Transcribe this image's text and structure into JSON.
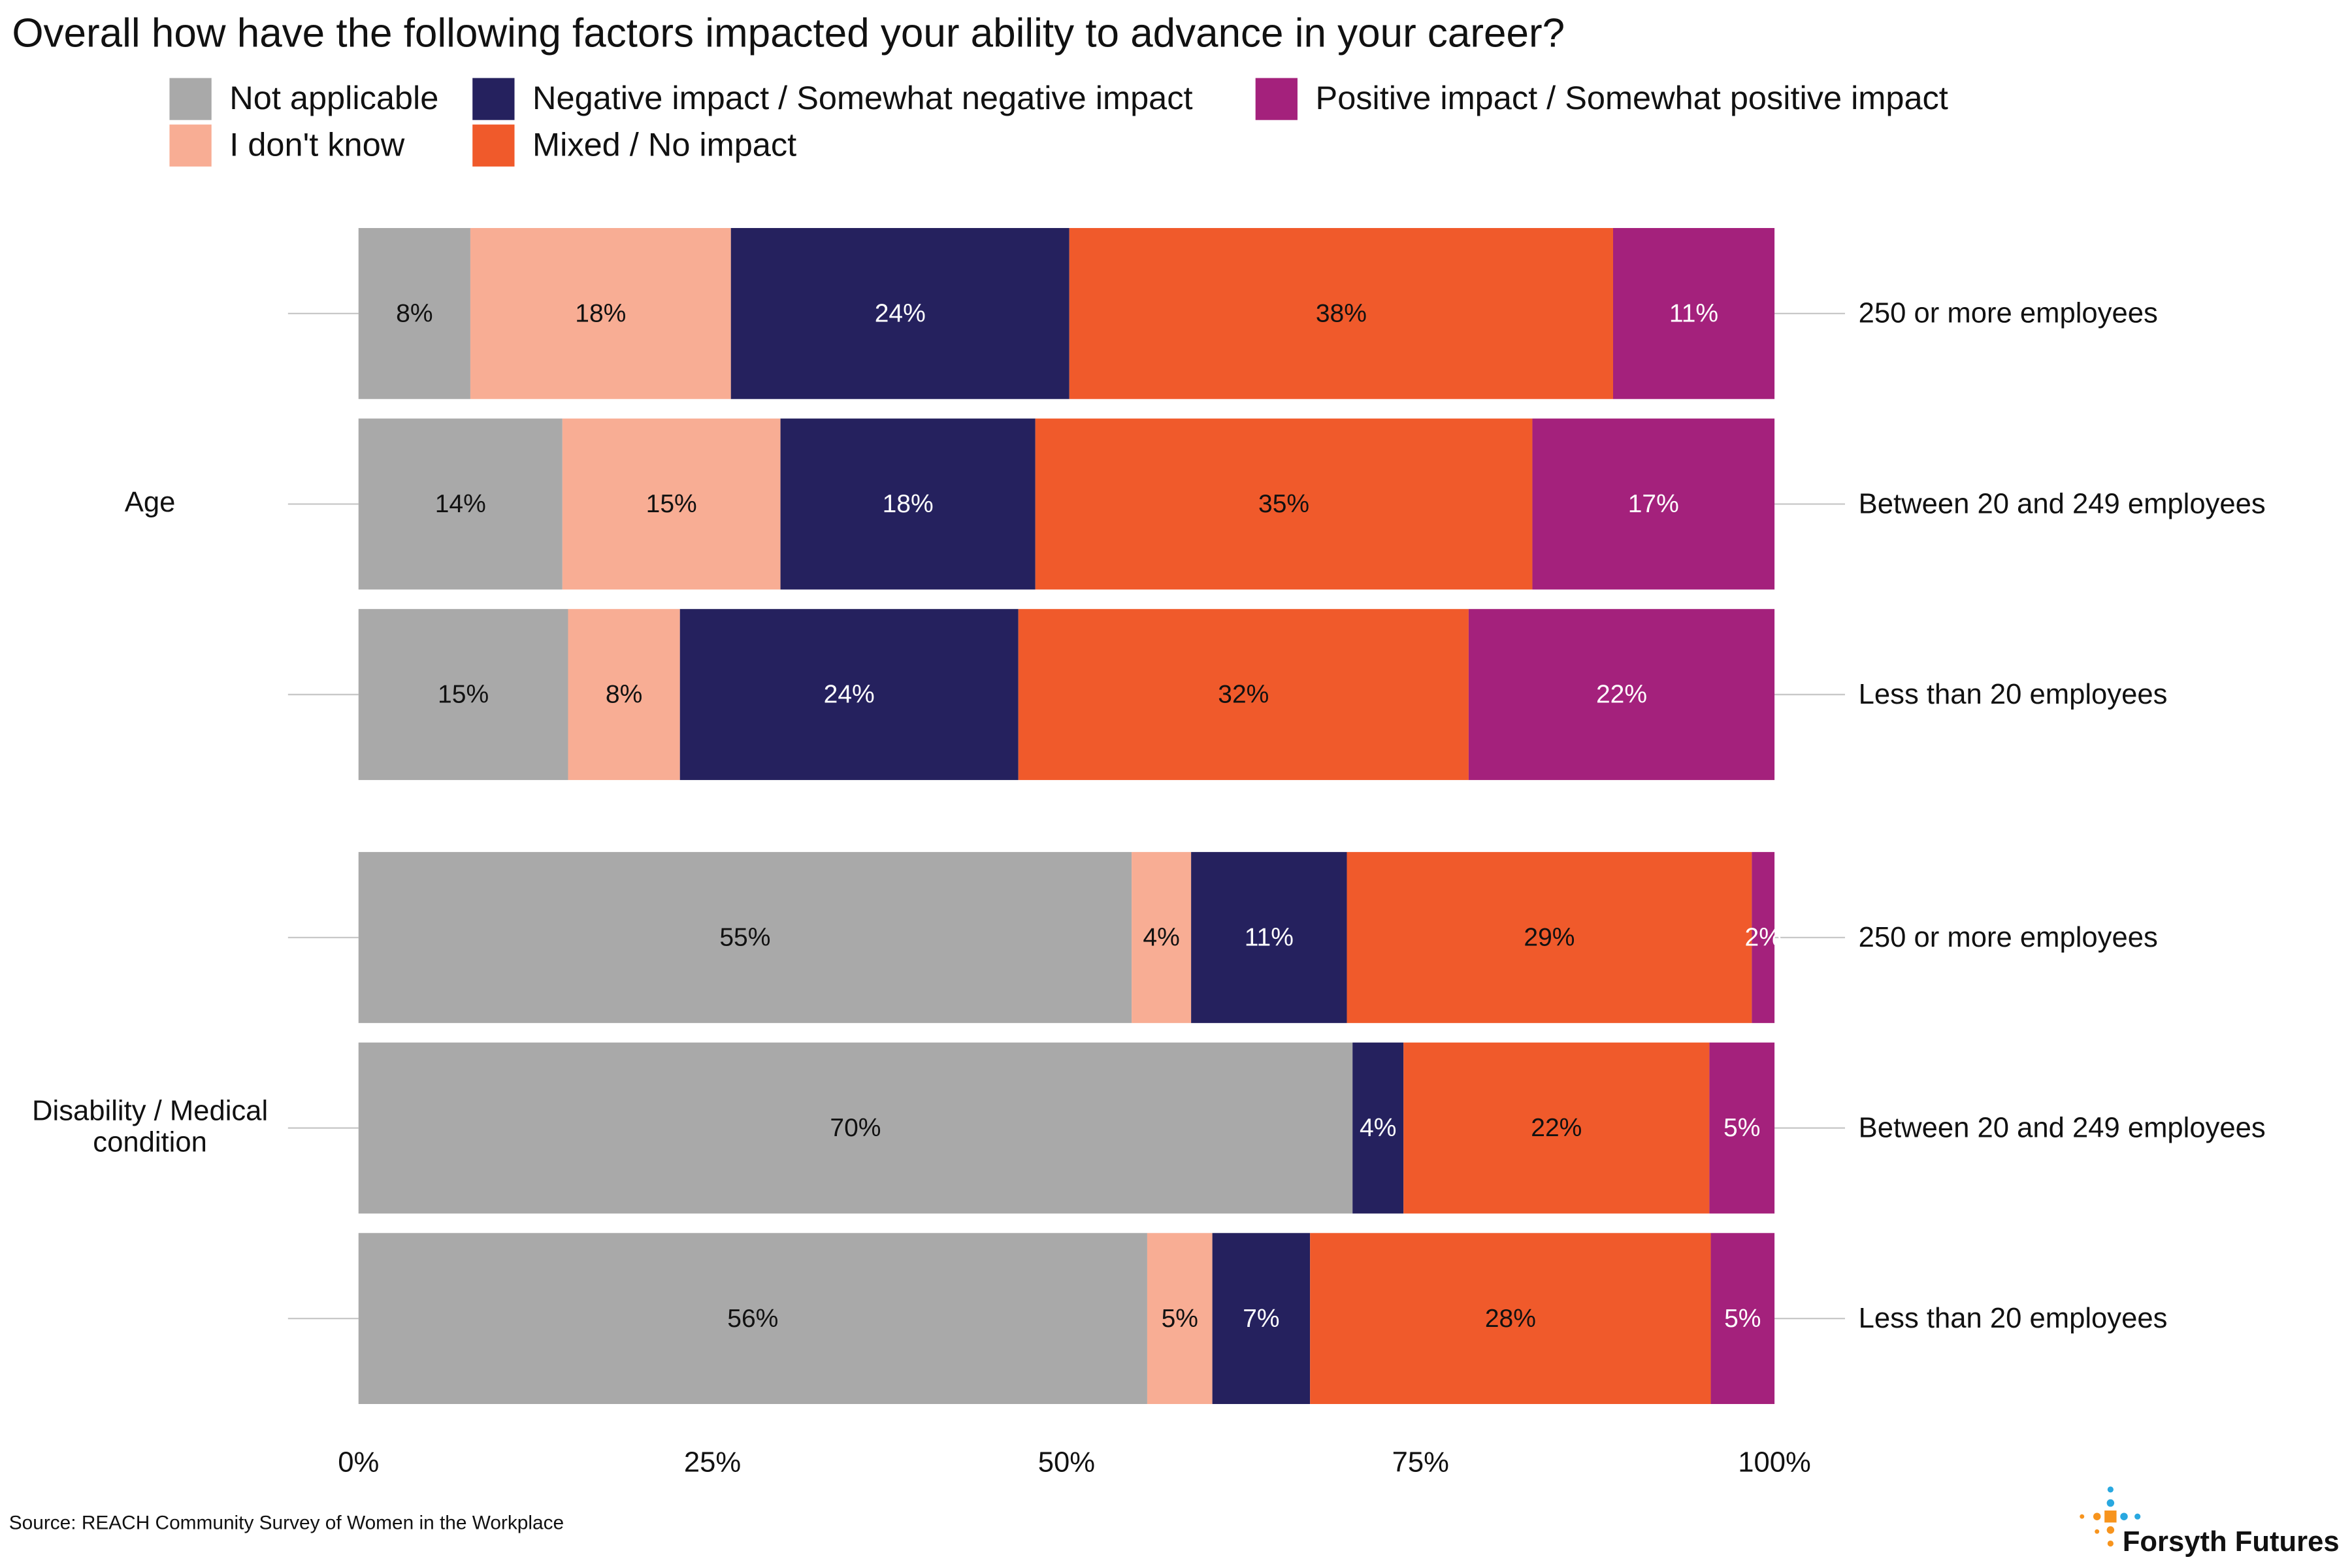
{
  "chart_data": {
    "type": "stacked-bar-horizontal",
    "title": "Overall how have the following factors impacted your ability to advance in your career?",
    "categories": [
      "250 or more employees",
      "Between 20 and 249 employees",
      "Less than 20 employees",
      "250 or more employees",
      "Between 20 and 249 employees",
      "Less than 20 employees"
    ],
    "group_labels": [
      null,
      "Age",
      null,
      null,
      "Disability / Medical condition",
      null
    ],
    "series": [
      {
        "name": "Not applicable",
        "color": "#a9a9a9",
        "values": [
          7.9,
          14.4,
          14.8,
          54.6,
          70.2,
          55.7
        ],
        "value_labels": [
          "8%",
          "14%",
          "15%",
          "55%",
          "70%",
          "56%"
        ]
      },
      {
        "name": "I don't know",
        "color": "#f8ad94",
        "values": [
          18.4,
          15.4,
          7.9,
          4.2,
          null,
          4.6
        ],
        "value_labels": [
          "18%",
          "15%",
          "8%",
          "4%",
          null,
          "5%"
        ]
      },
      {
        "name": "Negative impact / Somewhat negative impact",
        "color": "#25215e",
        "values": [
          23.9,
          18.0,
          23.9,
          11.0,
          3.6,
          6.9
        ],
        "value_labels": [
          "24%",
          "18%",
          "24%",
          "11%",
          "4%",
          "7%"
        ]
      },
      {
        "name": "Mixed / No impact",
        "color": "#f05a2b",
        "values": [
          38.4,
          35.1,
          31.8,
          28.6,
          21.6,
          28.3
        ],
        "value_labels": [
          "38%",
          "35%",
          "32%",
          "29%",
          "22%",
          "28%"
        ]
      },
      {
        "name": "Positive impact / Somewhat positive impact",
        "color": "#a4217c",
        "values": [
          11.4,
          17.1,
          21.6,
          1.6,
          4.6,
          4.5
        ],
        "value_labels": [
          "11%",
          "17%",
          "22%",
          "2%",
          "5%",
          "5%"
        ]
      }
    ],
    "xlim": [
      0,
      100
    ],
    "xticks": [
      {
        "value": 0,
        "label": "0%"
      },
      {
        "value": 25,
        "label": "25%"
      },
      {
        "value": 50,
        "label": "50%"
      },
      {
        "value": 75,
        "label": "75%"
      },
      {
        "value": 100,
        "label": "100%"
      }
    ],
    "grid": false,
    "source": "Source: REACH Community Survey of Women in the Workplace",
    "brand": "Forsyth Futures"
  }
}
